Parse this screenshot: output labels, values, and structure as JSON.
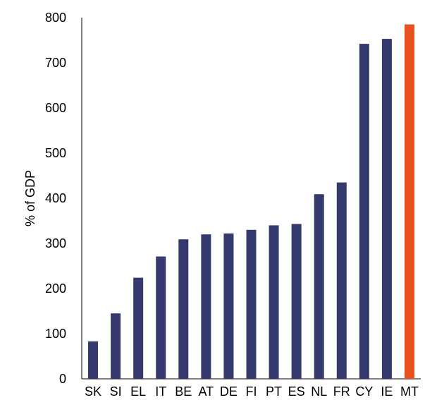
{
  "chart_data": {
    "type": "bar",
    "categories": [
      "SK",
      "SI",
      "EL",
      "IT",
      "BE",
      "AT",
      "DE",
      "FI",
      "PT",
      "ES",
      "NL",
      "FR",
      "CY",
      "IE",
      "MT"
    ],
    "values": [
      83,
      145,
      224,
      271,
      309,
      320,
      322,
      330,
      340,
      343,
      409,
      435,
      742,
      753,
      785
    ],
    "title": "",
    "xlabel": "",
    "ylabel": "% of GDP",
    "ylim": [
      0,
      800
    ],
    "yticks": [
      0,
      100,
      200,
      300,
      400,
      500,
      600,
      700,
      800
    ],
    "grid": false,
    "legend": "none",
    "colors": {
      "default": "#34396E",
      "highlight": "#E8501E",
      "highlight_category": "MT"
    }
  }
}
